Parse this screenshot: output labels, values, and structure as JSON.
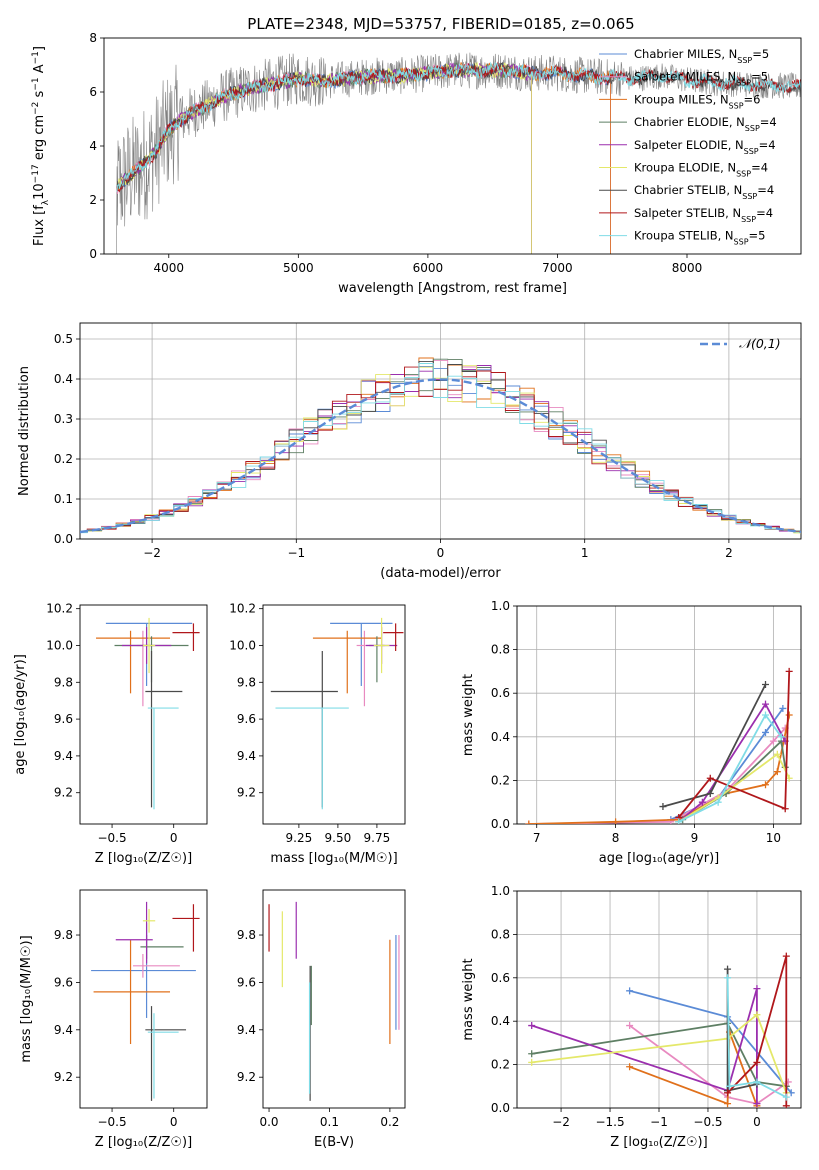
{
  "figure_title": "PLATE=2348, MJD=53757, FIBERID=0185, z=0.065",
  "colors": {
    "Chabrier MILES": "#5b8bd6",
    "Salpeter MILES": "#e88ac0",
    "Kroupa MILES": "#e0701b",
    "Chabrier ELODIE": "#5e7f64",
    "Salpeter ELODIE": "#9b2fae",
    "Kroupa ELODIE": "#e4e86a",
    "Chabrier STELIB": "#4a4a4a",
    "Salpeter STELIB": "#b0171b",
    "Kroupa STELIB": "#80dce6",
    "data": "#808080",
    "normal": "#5b8bd6"
  },
  "chart_data": [
    {
      "id": "spectrum",
      "type": "line",
      "title": "PLATE=2348, MJD=53757, FIBERID=0185, z=0.065",
      "xlabel": "wavelength [Angstrom, rest frame]",
      "ylabel_parts": [
        "Flux [f",
        "λ",
        "10",
        "−17",
        " erg cm",
        "−2",
        " s",
        "−1",
        " A",
        "−1",
        "]"
      ],
      "xlim": [
        3500,
        8880
      ],
      "ylim": [
        0,
        8
      ],
      "xticks": [
        4000,
        5000,
        6000,
        7000,
        8000
      ],
      "yticks": [
        0,
        2,
        4,
        6,
        8
      ],
      "legend_position": "upper-right",
      "legend": [
        {
          "name": "Chabrier MILES",
          "nssp": "5"
        },
        {
          "name": "Salpeter MILES",
          "nssp": "5"
        },
        {
          "name": "Kroupa MILES",
          "nssp": "6"
        },
        {
          "name": "Chabrier ELODIE",
          "nssp": "4"
        },
        {
          "name": "Salpeter ELODIE",
          "nssp": "4"
        },
        {
          "name": "Kroupa ELODIE",
          "nssp": "4"
        },
        {
          "name": "Chabrier STELIB",
          "nssp": "4"
        },
        {
          "name": "Salpeter STELIB",
          "nssp": "4"
        },
        {
          "name": "Kroupa STELIB",
          "nssp": "5"
        }
      ],
      "nssp_prefix": "N",
      "nssp_sub": "SSP",
      "continuum": {
        "x": [
          3580,
          3700,
          3800,
          3900,
          4000,
          4100,
          4200,
          4300,
          4400,
          4600,
          4800,
          5000,
          5200,
          5400,
          5600,
          5800,
          6000,
          6200,
          6400,
          6600,
          6800,
          7000,
          7200,
          7400,
          7600,
          7800,
          8000,
          8200,
          8400,
          8600,
          8880
        ],
        "y": [
          2.4,
          2.9,
          3.3,
          3.8,
          4.6,
          5.0,
          5.3,
          5.5,
          5.8,
          6.1,
          6.3,
          6.5,
          6.4,
          6.5,
          6.6,
          6.6,
          6.7,
          6.8,
          6.8,
          6.8,
          6.7,
          6.7,
          6.6,
          6.55,
          6.5,
          6.6,
          6.45,
          6.35,
          6.3,
          6.25,
          6.2
        ]
      },
      "model_ranges": {
        "MILES_end": 7410,
        "ELODIE_end": 6800,
        "STELIB_end": 8880,
        "start": 3600
      }
    },
    {
      "id": "residuals",
      "type": "histogram",
      "xlabel": "(data-model)/error",
      "ylabel": "Normed distribution",
      "xlim": [
        -2.5,
        2.5
      ],
      "ylim": [
        0,
        0.54
      ],
      "xticks": [
        -2,
        -1,
        0,
        1,
        2
      ],
      "yticks": [
        0.0,
        0.1,
        0.2,
        0.3,
        0.4,
        0.5
      ],
      "legend": "𝒩(0,1)",
      "legend_position": "upper-right",
      "grid": true
    },
    {
      "id": "age-vs-Z",
      "type": "errorbar",
      "xlabel": "Z [log₁₀(Z/Z☉)]",
      "ylabel": "age  [log₁₀(age/yr)]",
      "xlim": [
        -0.76,
        0.27
      ],
      "ylim": [
        9.03,
        10.22
      ],
      "xticks": [
        -0.5,
        0.0
      ],
      "yticks": [
        9.2,
        9.4,
        9.6,
        9.8,
        10.0,
        10.2
      ],
      "points": [
        {
          "model": "Chabrier MILES",
          "x": -0.22,
          "xerr": [
            0.33,
            0.37
          ],
          "y": 10.12,
          "yerr": [
            0.34,
            0.0
          ]
        },
        {
          "model": "Salpeter MILES",
          "x": -0.25,
          "xerr": [
            0.05,
            0.0
          ],
          "y": 10.0,
          "yerr": [
            0.33,
            0.08
          ]
        },
        {
          "model": "Kroupa MILES",
          "x": -0.35,
          "xerr": [
            0.28,
            0.32
          ],
          "y": 10.04,
          "yerr": [
            0.3,
            0.04
          ]
        },
        {
          "model": "Chabrier ELODIE",
          "x": -0.18,
          "xerr": [
            0.3,
            0.3
          ],
          "y": 10.0,
          "yerr": [
            0.2,
            0.05
          ]
        },
        {
          "model": "Salpeter ELODIE",
          "x": -0.22,
          "xerr": [
            0.2,
            0.2
          ],
          "y": 10.0,
          "yerr": [
            0.1,
            0.1
          ]
        },
        {
          "model": "Kroupa ELODIE",
          "x": -0.2,
          "xerr": [
            0.05,
            0.05
          ],
          "y": 10.0,
          "yerr": [
            0.15,
            0.15
          ]
        },
        {
          "model": "Chabrier STELIB",
          "x": -0.18,
          "xerr": [
            0.05,
            0.25
          ],
          "y": 9.75,
          "yerr": [
            0.63,
            0.22
          ]
        },
        {
          "model": "Salpeter STELIB",
          "x": 0.16,
          "xerr": [
            0.17,
            0.05
          ],
          "y": 10.07,
          "yerr": [
            0.1,
            0.05
          ]
        },
        {
          "model": "Kroupa STELIB",
          "x": -0.16,
          "xerr": [
            0.05,
            0.2
          ],
          "y": 9.66,
          "yerr": [
            0.55,
            0.0
          ]
        }
      ]
    },
    {
      "id": "age-vs-mass",
      "type": "errorbar",
      "xlabel": "mass [log₁₀(M/M☉)]",
      "ylabel": "",
      "xlim": [
        9.02,
        9.93
      ],
      "ylim": [
        9.03,
        10.22
      ],
      "xticks": [
        9.25,
        9.5,
        9.75
      ],
      "xticklabels": [
        "9.25",
        "9.50",
        "9.75"
      ],
      "yticks": [
        9.2,
        9.4,
        9.6,
        9.8,
        10.0,
        10.2
      ],
      "points": [
        {
          "model": "Chabrier MILES",
          "x": 9.65,
          "xerr": [
            0.2,
            0.2
          ],
          "y": 10.12,
          "yerr": [
            0.34,
            0.0
          ]
        },
        {
          "model": "Salpeter MILES",
          "x": 9.67,
          "xerr": [
            0.05,
            0.05
          ],
          "y": 10.0,
          "yerr": [
            0.33,
            0.08
          ]
        },
        {
          "model": "Kroupa MILES",
          "x": 9.56,
          "xerr": [
            0.22,
            0.22
          ],
          "y": 10.04,
          "yerr": [
            0.3,
            0.04
          ]
        },
        {
          "model": "Chabrier ELODIE",
          "x": 9.75,
          "xerr": [
            0.05,
            0.05
          ],
          "y": 10.0,
          "yerr": [
            0.2,
            0.05
          ]
        },
        {
          "model": "Salpeter ELODIE",
          "x": 9.78,
          "xerr": [
            0.1,
            0.1
          ],
          "y": 10.0,
          "yerr": [
            0.1,
            0.1
          ]
        },
        {
          "model": "Kroupa ELODIE",
          "x": 9.78,
          "xerr": [
            0.05,
            0.05
          ],
          "y": 10.0,
          "yerr": [
            0.15,
            0.15
          ]
        },
        {
          "model": "Chabrier STELIB",
          "x": 9.4,
          "xerr": [
            0.33,
            0.1
          ],
          "y": 9.75,
          "yerr": [
            0.63,
            0.22
          ]
        },
        {
          "model": "Salpeter STELIB",
          "x": 9.87,
          "xerr": [
            0.08,
            0.05
          ],
          "y": 10.07,
          "yerr": [
            0.1,
            0.05
          ]
        },
        {
          "model": "Kroupa STELIB",
          "x": 9.4,
          "xerr": [
            0.3,
            0.17
          ],
          "y": 9.66,
          "yerr": [
            0.55,
            0.0
          ]
        }
      ]
    },
    {
      "id": "mw-vs-age",
      "type": "line",
      "xlabel": "age  [log₁₀(age/yr)]",
      "ylabel": "mass weight",
      "xlim": [
        6.75,
        10.35
      ],
      "ylim": [
        0,
        1.0
      ],
      "xticks": [
        7,
        8,
        9,
        10
      ],
      "yticks": [
        0.0,
        0.2,
        0.4,
        0.6,
        0.8,
        1.0
      ],
      "grid": true,
      "series": [
        {
          "model": "Chabrier MILES",
          "x": [
            8.7,
            9.3,
            9.9,
            10.12
          ],
          "y": [
            0.02,
            0.12,
            0.42,
            0.53
          ]
        },
        {
          "model": "Salpeter MILES",
          "x": [
            6.9,
            8.7,
            9.4,
            10.0,
            10.15
          ],
          "y": [
            0.0,
            0.01,
            0.15,
            0.38,
            0.44
          ]
        },
        {
          "model": "Kroupa MILES",
          "x": [
            6.9,
            8.0,
            8.8,
            9.4,
            9.9,
            10.05,
            10.2
          ],
          "y": [
            0.0,
            0.01,
            0.02,
            0.14,
            0.18,
            0.24,
            0.5
          ]
        },
        {
          "model": "Chabrier ELODIE",
          "x": [
            8.85,
            9.4,
            10.1,
            10.15
          ],
          "y": [
            0.02,
            0.14,
            0.38,
            0.26
          ]
        },
        {
          "model": "Salpeter ELODIE",
          "x": [
            8.8,
            9.1,
            9.9,
            10.15
          ],
          "y": [
            0.01,
            0.1,
            0.55,
            0.38
          ]
        },
        {
          "model": "Kroupa ELODIE",
          "x": [
            8.8,
            9.3,
            10.05,
            10.2
          ],
          "y": [
            0.01,
            0.12,
            0.32,
            0.21
          ]
        },
        {
          "model": "Chabrier STELIB",
          "x": [
            8.6,
            9.2,
            9.9
          ],
          "y": [
            0.08,
            0.14,
            0.64
          ]
        },
        {
          "model": "Salpeter STELIB",
          "x": [
            8.8,
            9.2,
            10.15,
            10.2
          ],
          "y": [
            0.03,
            0.21,
            0.07,
            0.7
          ]
        },
        {
          "model": "Kroupa STELIB",
          "x": [
            8.8,
            9.3,
            9.9,
            10.1
          ],
          "y": [
            0.01,
            0.1,
            0.5,
            0.4
          ]
        }
      ]
    },
    {
      "id": "mass-vs-Z",
      "type": "errorbar",
      "xlabel": "Z [log₁₀(Z/Z☉)]",
      "ylabel": "mass [log₁₀(M/M☉)]",
      "xlim": [
        -0.76,
        0.27
      ],
      "ylim": [
        9.07,
        9.99
      ],
      "xticks": [
        -0.5,
        0.0
      ],
      "yticks": [
        9.2,
        9.4,
        9.6,
        9.8
      ],
      "points": [
        {
          "model": "Chabrier MILES",
          "x": -0.22,
          "xerr": [
            0.45,
            0.4
          ],
          "y": 9.65,
          "yerr": [
            0.2,
            0.2
          ]
        },
        {
          "model": "Salpeter MILES",
          "x": -0.25,
          "xerr": [
            0.08,
            0.3
          ],
          "y": 9.67,
          "yerr": [
            0.05,
            0.05
          ]
        },
        {
          "model": "Kroupa MILES",
          "x": -0.35,
          "xerr": [
            0.3,
            0.32
          ],
          "y": 9.56,
          "yerr": [
            0.22,
            0.22
          ]
        },
        {
          "model": "Chabrier ELODIE",
          "x": -0.22,
          "xerr": [
            0.05,
            0.3
          ],
          "y": 9.75,
          "yerr": [
            0.05,
            0.05
          ]
        },
        {
          "model": "Salpeter ELODIE",
          "x": -0.22,
          "xerr": [
            0.25,
            0.05
          ],
          "y": 9.78,
          "yerr": [
            0.1,
            0.16
          ]
        },
        {
          "model": "Kroupa ELODIE",
          "x": -0.2,
          "xerr": [
            0.05,
            0.05
          ],
          "y": 9.86,
          "yerr": [
            0.05,
            0.05
          ]
        },
        {
          "model": "Chabrier STELIB",
          "x": -0.18,
          "xerr": [
            0.05,
            0.28
          ],
          "y": 9.4,
          "yerr": [
            0.3,
            0.1
          ]
        },
        {
          "model": "Salpeter STELIB",
          "x": 0.16,
          "xerr": [
            0.17,
            0.05
          ],
          "y": 9.87,
          "yerr": [
            0.14,
            0.06
          ]
        },
        {
          "model": "Kroupa STELIB",
          "x": -0.16,
          "xerr": [
            0.05,
            0.2
          ],
          "y": 9.39,
          "yerr": [
            0.28,
            0.08
          ]
        }
      ]
    },
    {
      "id": "mass-vs-ebv",
      "type": "errorbar",
      "xlabel": "E(B-V)",
      "ylabel": "",
      "xlim": [
        -0.01,
        0.225
      ],
      "ylim": [
        9.07,
        9.99
      ],
      "xticks": [
        0.0,
        0.1,
        0.2
      ],
      "yticks": [
        9.2,
        9.4,
        9.6,
        9.8
      ],
      "points": [
        {
          "model": "Chabrier MILES",
          "x": 0.21,
          "xerr": [
            0,
            0
          ],
          "y": 9.6,
          "yerr": [
            0.2,
            0.2
          ]
        },
        {
          "model": "Salpeter MILES",
          "x": 0.215,
          "xerr": [
            0,
            0
          ],
          "y": 9.6,
          "yerr": [
            0.2,
            0.2
          ]
        },
        {
          "model": "Kroupa MILES",
          "x": 0.2,
          "xerr": [
            0,
            0
          ],
          "y": 9.56,
          "yerr": [
            0.22,
            0.22
          ]
        },
        {
          "model": "Chabrier ELODIE",
          "x": 0.07,
          "xerr": [
            0,
            0
          ],
          "y": 9.55,
          "yerr": [
            0.13,
            0.12
          ]
        },
        {
          "model": "Salpeter ELODIE",
          "x": 0.045,
          "xerr": [
            0,
            0
          ],
          "y": 9.8,
          "yerr": [
            0.1,
            0.14
          ]
        },
        {
          "model": "Kroupa ELODIE",
          "x": 0.022,
          "xerr": [
            0,
            0
          ],
          "y": 9.74,
          "yerr": [
            0.16,
            0.16
          ]
        },
        {
          "model": "Chabrier STELIB",
          "x": 0.068,
          "xerr": [
            0,
            0
          ],
          "y": 9.4,
          "yerr": [
            0.3,
            0.27
          ]
        },
        {
          "model": "Salpeter STELIB",
          "x": 0.0,
          "xerr": [
            0,
            0
          ],
          "y": 9.83,
          "yerr": [
            0.1,
            0.1
          ]
        },
        {
          "model": "Kroupa STELIB",
          "x": 0.067,
          "xerr": [
            0,
            0
          ],
          "y": 9.4,
          "yerr": [
            0.27,
            0.2
          ]
        }
      ]
    },
    {
      "id": "mw-vs-Z",
      "type": "line",
      "xlabel": "Z [log₁₀(Z/Z☉)]",
      "ylabel": "mass weight",
      "xlim": [
        -2.45,
        0.45
      ],
      "ylim": [
        0,
        1.0
      ],
      "xticks": [
        -2.0,
        -1.5,
        -1.0,
        -0.5,
        0.0
      ],
      "yticks": [
        0.0,
        0.2,
        0.4,
        0.6,
        0.8,
        1.0
      ],
      "grid": true,
      "series": [
        {
          "model": "Chabrier MILES",
          "x": [
            -1.3,
            -0.3,
            0.35
          ],
          "y": [
            0.54,
            0.42,
            0.07
          ]
        },
        {
          "model": "Salpeter MILES",
          "x": [
            -1.3,
            -0.3,
            0.0,
            0.32
          ],
          "y": [
            0.38,
            0.05,
            0.02,
            0.12
          ]
        },
        {
          "model": "Kroupa MILES",
          "x": [
            -1.3,
            -0.3,
            -0.28,
            0.0
          ],
          "y": [
            0.19,
            0.02,
            0.35,
            0.01
          ]
        },
        {
          "model": "Chabrier ELODIE",
          "x": [
            -2.3,
            -0.3,
            0.0,
            0.3
          ],
          "y": [
            0.25,
            0.39,
            0.12,
            0.1
          ]
        },
        {
          "model": "Salpeter ELODIE",
          "x": [
            -2.3,
            -0.3,
            0.0,
            0.0
          ],
          "y": [
            0.38,
            0.08,
            0.55,
            0.02
          ]
        },
        {
          "model": "Kroupa ELODIE",
          "x": [
            -2.3,
            -0.3,
            0.0,
            0.3
          ],
          "y": [
            0.21,
            0.32,
            0.43,
            0.07
          ]
        },
        {
          "model": "Chabrier STELIB",
          "x": [
            -0.3,
            -0.3,
            0.0
          ],
          "y": [
            0.64,
            0.08,
            0.11
          ]
        },
        {
          "model": "Salpeter STELIB",
          "x": [
            -0.3,
            0.0,
            0.3,
            0.3
          ],
          "y": [
            0.07,
            0.21,
            0.7,
            0.01
          ]
        },
        {
          "model": "Kroupa STELIB",
          "x": [
            -0.3,
            -0.28,
            0.0,
            0.3
          ],
          "y": [
            0.6,
            0.1,
            0.12,
            0.05
          ]
        }
      ]
    }
  ]
}
